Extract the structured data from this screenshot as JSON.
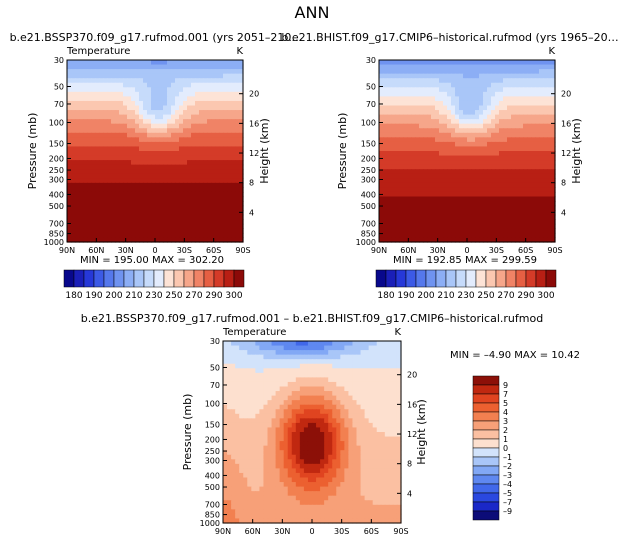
{
  "page_title": "ANN",
  "chart_data": [
    {
      "type": "heatmap",
      "title": "b.e21.BSSP370.f09_g17.rufmod.001 (yrs 2051–210…",
      "subtitle_left": "Temperature",
      "subtitle_right": "K",
      "ylabel": "Pressure  (mb)",
      "ylabel_right": "Height  (km)",
      "x_ticks": [
        "90N",
        "60N",
        "30N",
        "0",
        "30S",
        "60S",
        "90S"
      ],
      "y_ticks": [
        "30",
        "50",
        "70",
        "100",
        "150",
        "200",
        "250",
        "300",
        "400",
        "500",
        "700",
        "850",
        "1000"
      ],
      "y_ticks_right": [
        "20",
        "16",
        "12",
        "8",
        "4"
      ],
      "stats": "MIN = 195.00   MAX = 302.20",
      "colorbar_labels": [
        "180",
        "190",
        "200",
        "210",
        "230",
        "250",
        "270",
        "290",
        "300"
      ],
      "fields": {
        "top": 220,
        "bottom": 305,
        "min_x": 0.52,
        "min_y": 0.28,
        "min": 195.0,
        "max": 302.2
      }
    },
    {
      "type": "heatmap",
      "title": "b.e21.BHIST.f09_g17.CMIP6–historical.rufmod (yrs 1965–20…",
      "subtitle_left": "",
      "subtitle_right": "K",
      "ylabel": "Pressure  (mb)",
      "ylabel_right": "Height  (km)",
      "x_ticks": [
        "90N",
        "60N",
        "30N",
        "0",
        "30S",
        "60S",
        "90S"
      ],
      "y_ticks": [
        "30",
        "50",
        "70",
        "100",
        "150",
        "200",
        "250",
        "300",
        "400",
        "500",
        "700",
        "850",
        "1000"
      ],
      "y_ticks_right": [
        "20",
        "16",
        "12",
        "8",
        "4"
      ],
      "stats": "MIN = 192.85   MAX = 299.59",
      "colorbar_labels": [
        "180",
        "190",
        "200",
        "210",
        "230",
        "250",
        "270",
        "290",
        "300"
      ],
      "fields": {
        "top": 217,
        "bottom": 302,
        "min_x": 0.52,
        "min_y": 0.28,
        "min": 192.85,
        "max": 299.59
      }
    },
    {
      "type": "heatmap",
      "title": "b.e21.BSSP370.f09_g17.rufmod.001  –  b.e21.BHIST.f09_g17.CMIP6–historical.rufmod",
      "subtitle_left": "Temperature",
      "subtitle_right": "K",
      "ylabel": "Pressure  (mb)",
      "ylabel_right": "Height  (km)",
      "x_ticks": [
        "90N",
        "60N",
        "30N",
        "0",
        "30S",
        "60S",
        "90S"
      ],
      "y_ticks": [
        "30",
        "50",
        "70",
        "100",
        "150",
        "200",
        "250",
        "300",
        "400",
        "500",
        "700",
        "850",
        "1000"
      ],
      "y_ticks_right": [
        "20",
        "16",
        "12",
        "8",
        "4"
      ],
      "stats": "MIN =  –4.90   MAX =  10.42",
      "colorbar_labels": [
        "9",
        "7",
        "5",
        "4",
        "3",
        "2",
        "1",
        "0",
        "–1",
        "–2",
        "–3",
        "–4",
        "–5",
        "–7",
        "–9"
      ],
      "fields": {
        "min": -4.9,
        "max": 10.42
      }
    }
  ],
  "colors": {
    "abs_scale": [
      "#08088c",
      "#1a1fb8",
      "#2638d8",
      "#3c5ae6",
      "#5578ec",
      "#6f93f0",
      "#8caef5",
      "#a9c6f8",
      "#c6dbfb",
      "#e3ecfd",
      "#fde3d6",
      "#fbc7b0",
      "#f6a68a",
      "#f08366",
      "#e65f43",
      "#d43b28",
      "#b81f14",
      "#8c0a08"
    ],
    "diff_scale": [
      "#0c0c78",
      "#1a28c8",
      "#2a48e0",
      "#4168ea",
      "#5f88f0",
      "#82a8f5",
      "#a9c6f8",
      "#d2e3fb",
      "#fde0cf",
      "#fbc0a2",
      "#f7a078",
      "#f28050",
      "#ec6030",
      "#e04420",
      "#c02810",
      "#8c1008"
    ]
  }
}
